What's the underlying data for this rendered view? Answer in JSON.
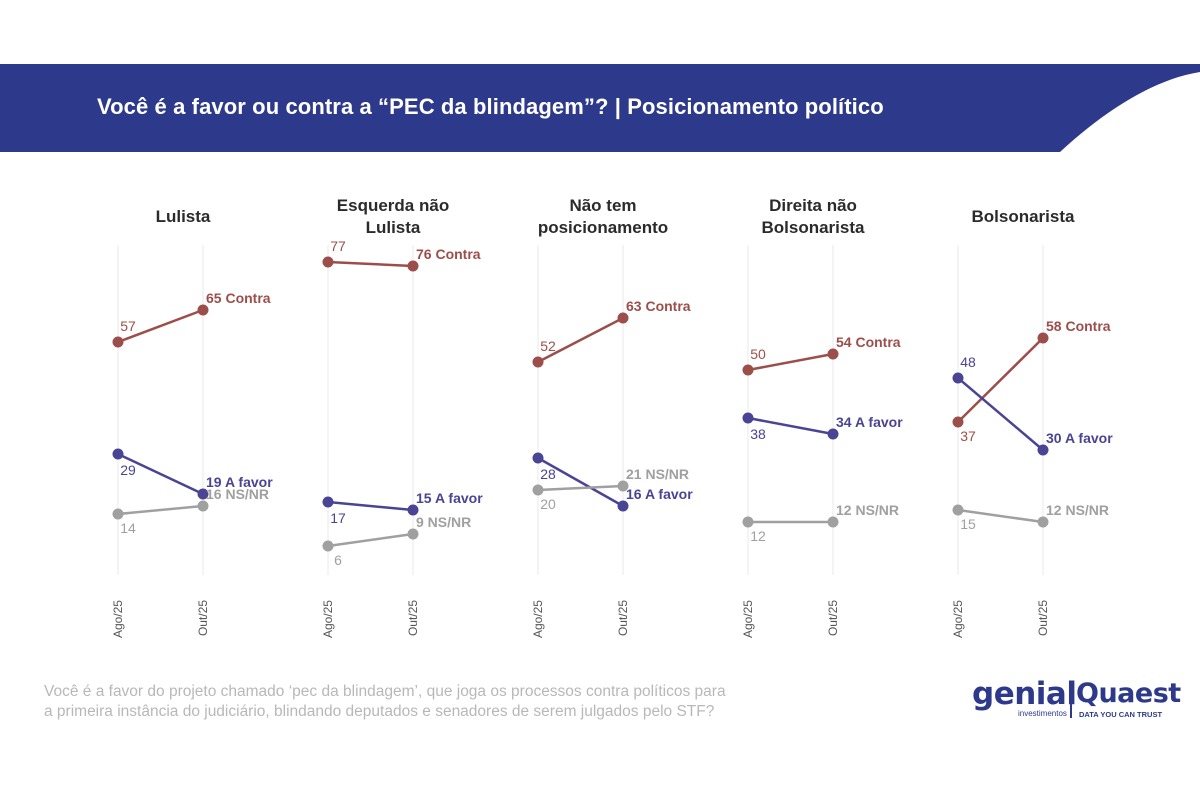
{
  "header": {
    "title": "Você é a favor ou contra a “PEC da blindagem”? | Posicionamento político",
    "color": "#2d3a8c"
  },
  "chart_data": {
    "type": "line",
    "x": [
      "Ago/25",
      "Out/25"
    ],
    "ylim": [
      0,
      80
    ],
    "grid": "vertical lines at each period",
    "colors": {
      "Contra": "#9c4f4a",
      "A favor": "#4a4494",
      "NS/NR": "#a0a0a0"
    },
    "panels": [
      {
        "title_lines": [
          "Lulista"
        ],
        "series": [
          {
            "name": "Contra",
            "values": [
              57,
              65
            ],
            "end_label": "65 Contra"
          },
          {
            "name": "A favor",
            "values": [
              29,
              19
            ],
            "end_label": "19 A favor"
          },
          {
            "name": "NS/NR",
            "values": [
              14,
              16
            ],
            "end_label": "16 NS/NR"
          }
        ]
      },
      {
        "title_lines": [
          "Esquerda não",
          "Lulista"
        ],
        "series": [
          {
            "name": "Contra",
            "values": [
              77,
              76
            ],
            "end_label": "76 Contra"
          },
          {
            "name": "A favor",
            "values": [
              17,
              15
            ],
            "end_label": "15 A favor"
          },
          {
            "name": "NS/NR",
            "values": [
              6,
              9
            ],
            "end_label": "9 NS/NR"
          }
        ]
      },
      {
        "title_lines": [
          "Não tem",
          "posicionamento"
        ],
        "series": [
          {
            "name": "Contra",
            "values": [
              52,
              63
            ],
            "end_label": "63 Contra"
          },
          {
            "name": "A favor",
            "values": [
              28,
              16
            ],
            "end_label": "16 A favor"
          },
          {
            "name": "NS/NR",
            "values": [
              20,
              21
            ],
            "end_label": "21 NS/NR"
          }
        ]
      },
      {
        "title_lines": [
          "Direita não",
          "Bolsonarista"
        ],
        "series": [
          {
            "name": "Contra",
            "values": [
              50,
              54
            ],
            "end_label": "54 Contra"
          },
          {
            "name": "A favor",
            "values": [
              38,
              34
            ],
            "end_label": "34 A favor"
          },
          {
            "name": "NS/NR",
            "values": [
              12,
              12
            ],
            "end_label": "12 NS/NR"
          }
        ]
      },
      {
        "title_lines": [
          "Bolsonarista"
        ],
        "series": [
          {
            "name": "Contra",
            "values": [
              37,
              58
            ],
            "end_label": "58 Contra"
          },
          {
            "name": "A favor",
            "values": [
              48,
              30
            ],
            "end_label": "30 A favor"
          },
          {
            "name": "NS/NR",
            "values": [
              15,
              12
            ],
            "end_label": "12 NS/NR"
          }
        ]
      }
    ]
  },
  "footnote": {
    "line1": "Você é a favor do projeto chamado ‘pec da blindagem’, que joga os processos contra políticos para",
    "line2": "a primeira instância do judiciário, blindando deputados e senadores de serem julgados pelo STF?"
  },
  "logos": {
    "genial": "genial",
    "genial_sub": "investimentos",
    "quaest": "Quaest",
    "quaest_sub": "DATA YOU CAN TRUST"
  }
}
